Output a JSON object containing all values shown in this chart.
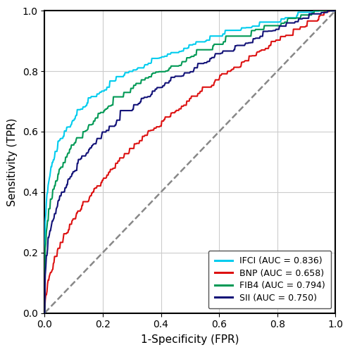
{
  "title": "",
  "xlabel": "1-Specificity (FPR)",
  "ylabel": "Sensitivity (TPR)",
  "xlim": [
    0.0,
    1.0
  ],
  "ylim": [
    0.0,
    1.0
  ],
  "xticks": [
    0.0,
    0.2,
    0.4,
    0.6,
    0.8,
    1.0
  ],
  "yticks": [
    0.0,
    0.2,
    0.4,
    0.6,
    0.8,
    1.0
  ],
  "grid_color": "#cccccc",
  "background_color": "#ffffff",
  "curves": [
    {
      "label": "IFCI (AUC = 0.836)",
      "color": "#00CCEE",
      "auc": 0.836,
      "shape_power": 0.28,
      "seed": 10
    },
    {
      "label": "BNP (AUC = 0.658)",
      "color": "#DD1111",
      "auc": 0.658,
      "shape_power": 0.72,
      "seed": 20
    },
    {
      "label": "FIB4 (AUC = 0.794)",
      "color": "#009955",
      "auc": 0.794,
      "shape_power": 0.38,
      "seed": 30
    },
    {
      "label": "SII (AUC = 0.750)",
      "color": "#111177",
      "auc": 0.75,
      "shape_power": 0.44,
      "seed": 40
    }
  ],
  "diagonal_color": "#888888",
  "diagonal_linestyle": "--",
  "linewidth": 1.5,
  "legend_loc": "lower right",
  "legend_fontsize": 9,
  "tick_fontsize": 10,
  "label_fontsize": 11
}
